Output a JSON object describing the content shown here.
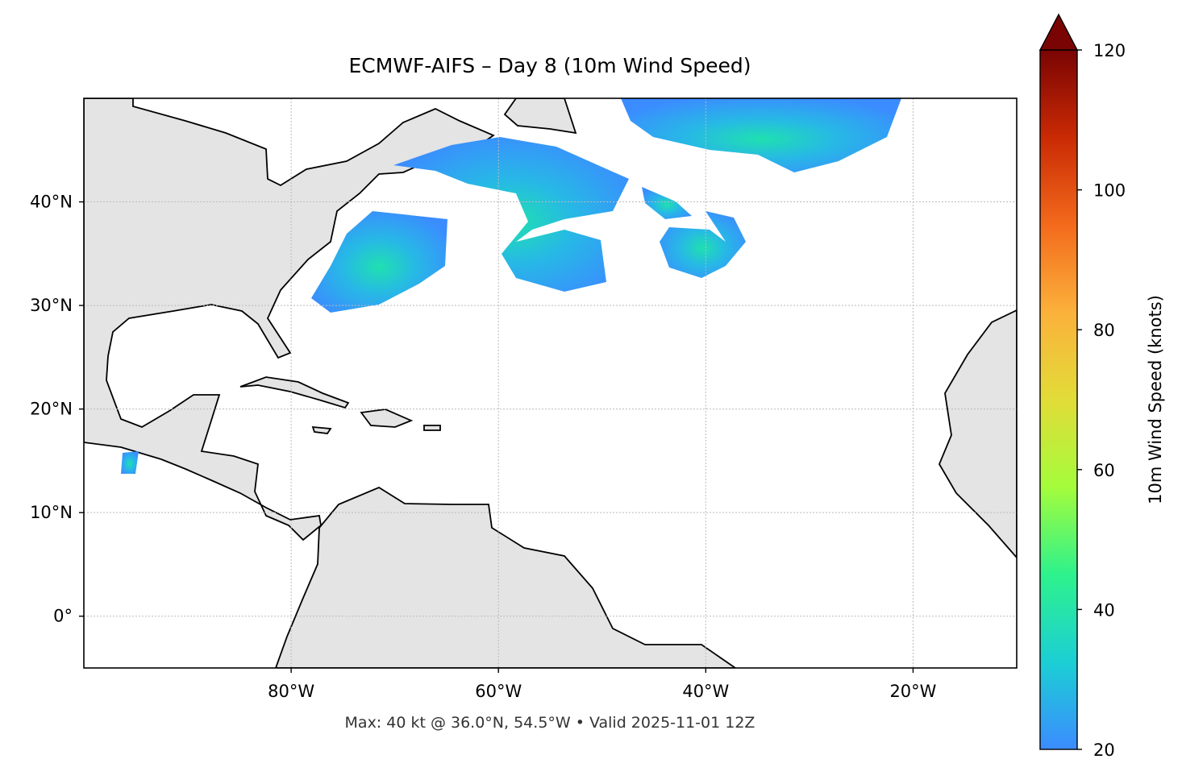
{
  "chart_data": {
    "type": "map",
    "title": "ECMWF-AIFS – Day 8 (10m Wind Speed)",
    "footnote": "Max: 40 kt @ 36.0°N, 54.5°W • Valid 2025-11-01 12Z",
    "xlim": [
      -100,
      -10
    ],
    "ylim": [
      -5,
      50
    ],
    "xticks": [
      {
        "value": -80,
        "label": "80°W"
      },
      {
        "value": -60,
        "label": "60°W"
      },
      {
        "value": -40,
        "label": "40°W"
      },
      {
        "value": -20,
        "label": "20°W"
      }
    ],
    "yticks": [
      {
        "value": 0,
        "label": "0°"
      },
      {
        "value": 10,
        "label": "10°N"
      },
      {
        "value": 20,
        "label": "20°N"
      },
      {
        "value": 30,
        "label": "30°N"
      },
      {
        "value": 40,
        "label": "40°N"
      }
    ],
    "grid": true,
    "colorbar": {
      "label": "10m Wind Speed (knots)",
      "lim": [
        20,
        120
      ],
      "ticks": [
        20,
        40,
        60,
        80,
        100,
        120
      ],
      "colors": [
        "#3b8cff",
        "#1bcfd4",
        "#2ef28c",
        "#a4fc3b",
        "#e2dc38",
        "#fbb13b",
        "#f36a1c",
        "#c92a04",
        "#7a0403"
      ]
    }
  }
}
